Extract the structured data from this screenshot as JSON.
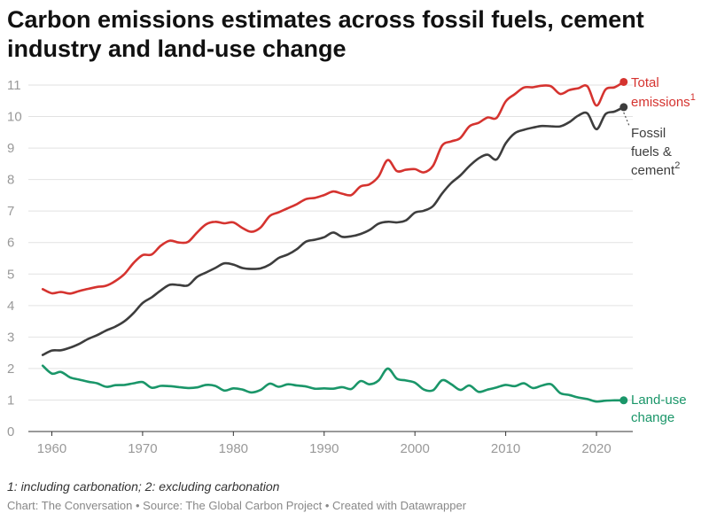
{
  "title": "Carbon emissions estimates across fossil fuels, cement industry and land-use change",
  "footnote": "1: including carbonation; 2: excluding carbonation",
  "credits": "Chart: The Conversation • Source: The Global Carbon Project • Created with Datawrapper",
  "colors": {
    "total": "#d5332f",
    "fossil": "#3d3d3d",
    "landuse": "#1a9669",
    "grid": "#e2e2e2",
    "tick": "#999999"
  },
  "chart_data": {
    "type": "line",
    "title": "Carbon emissions estimates across fossil fuels, cement industry and land-use change",
    "xlabel": "",
    "ylabel": "",
    "xlim": [
      1958,
      2024
    ],
    "ylim": [
      0,
      11
    ],
    "x_ticks": [
      1960,
      1970,
      1980,
      1990,
      2000,
      2010,
      2020
    ],
    "y_ticks": [
      0,
      1,
      2,
      3,
      4,
      5,
      6,
      7,
      8,
      9,
      10,
      11
    ],
    "grid": true,
    "x": [
      1959,
      1960,
      1961,
      1962,
      1963,
      1964,
      1965,
      1966,
      1967,
      1968,
      1969,
      1970,
      1971,
      1972,
      1973,
      1974,
      1975,
      1976,
      1977,
      1978,
      1979,
      1980,
      1981,
      1982,
      1983,
      1984,
      1985,
      1986,
      1987,
      1988,
      1989,
      1990,
      1991,
      1992,
      1993,
      1994,
      1995,
      1996,
      1997,
      1998,
      1999,
      2000,
      2001,
      2002,
      2003,
      2004,
      2005,
      2006,
      2007,
      2008,
      2009,
      2010,
      2011,
      2012,
      2013,
      2014,
      2015,
      2016,
      2017,
      2018,
      2019,
      2020,
      2021,
      2022,
      2023
    ],
    "series": [
      {
        "key": "total",
        "name": "Total emissions",
        "sup": "1",
        "values": [
          4.52,
          4.39,
          4.43,
          4.38,
          4.46,
          4.53,
          4.59,
          4.63,
          4.78,
          5.0,
          5.35,
          5.6,
          5.62,
          5.9,
          6.06,
          6.0,
          6.02,
          6.32,
          6.58,
          6.66,
          6.61,
          6.64,
          6.46,
          6.34,
          6.48,
          6.84,
          6.96,
          7.09,
          7.22,
          7.38,
          7.42,
          7.51,
          7.62,
          7.55,
          7.51,
          7.78,
          7.85,
          8.1,
          8.62,
          8.27,
          8.31,
          8.33,
          8.23,
          8.44,
          9.08,
          9.21,
          9.32,
          9.69,
          9.8,
          9.97,
          9.96,
          10.48,
          10.71,
          10.92,
          10.93,
          10.98,
          10.96,
          10.72,
          10.84,
          10.9,
          10.96,
          10.35,
          10.86,
          10.93,
          11.1
        ]
      },
      {
        "key": "fossil",
        "name": "Fossil fuels & cement",
        "sup": "2",
        "values": [
          2.43,
          2.57,
          2.58,
          2.66,
          2.78,
          2.94,
          3.06,
          3.21,
          3.33,
          3.5,
          3.76,
          4.08,
          4.26,
          4.48,
          4.66,
          4.65,
          4.64,
          4.91,
          5.05,
          5.19,
          5.34,
          5.3,
          5.19,
          5.16,
          5.18,
          5.3,
          5.51,
          5.62,
          5.79,
          6.03,
          6.09,
          6.17,
          6.32,
          6.18,
          6.2,
          6.27,
          6.4,
          6.6,
          6.66,
          6.64,
          6.7,
          6.95,
          7.01,
          7.16,
          7.56,
          7.89,
          8.13,
          8.43,
          8.67,
          8.79,
          8.64,
          9.15,
          9.47,
          9.58,
          9.65,
          9.7,
          9.69,
          9.69,
          9.82,
          10.03,
          10.1,
          9.6,
          10.08,
          10.16,
          10.3
        ]
      },
      {
        "key": "landuse",
        "name": "Land-use change",
        "sup": "",
        "values": [
          2.09,
          1.84,
          1.89,
          1.72,
          1.65,
          1.58,
          1.53,
          1.42,
          1.47,
          1.48,
          1.53,
          1.57,
          1.39,
          1.45,
          1.44,
          1.41,
          1.38,
          1.4,
          1.48,
          1.45,
          1.3,
          1.37,
          1.33,
          1.24,
          1.32,
          1.52,
          1.42,
          1.5,
          1.46,
          1.43,
          1.36,
          1.37,
          1.36,
          1.41,
          1.35,
          1.6,
          1.5,
          1.62,
          2.0,
          1.68,
          1.62,
          1.55,
          1.33,
          1.31,
          1.63,
          1.5,
          1.32,
          1.46,
          1.26,
          1.33,
          1.4,
          1.48,
          1.44,
          1.53,
          1.38,
          1.46,
          1.5,
          1.22,
          1.16,
          1.08,
          1.03,
          0.95,
          0.98,
          0.99,
          0.99
        ]
      }
    ]
  }
}
